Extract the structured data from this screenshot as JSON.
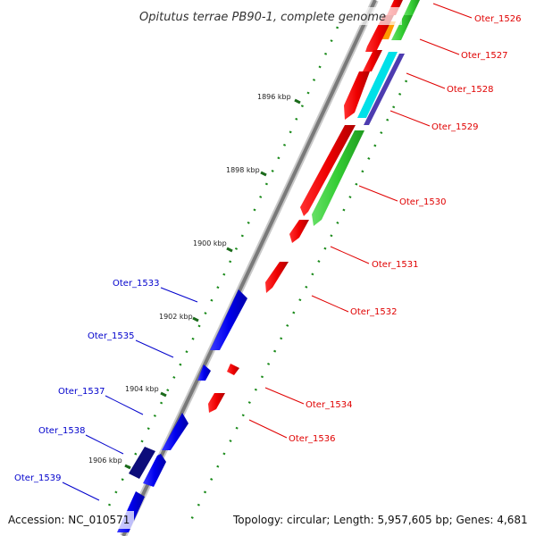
{
  "title": "Opitutus terrae PB90-1, complete genome",
  "footer": {
    "accession": "Accession: NC_010571",
    "summary": "Topology: circular; Length: 5,957,605 bp; Genes: 4,681"
  },
  "colors": {
    "backbone": "#7f7f7f",
    "forward_label": "#e00000",
    "reverse_label": "#0000cc",
    "gc_dots": "#1a8a1a"
  },
  "kbp_ticks": [
    {
      "label": "1896 kbp"
    },
    {
      "label": "1898 kbp"
    },
    {
      "label": "1900 kbp"
    },
    {
      "label": "1902 kbp"
    },
    {
      "label": "1904 kbp"
    },
    {
      "label": "1906 kbp"
    }
  ],
  "forward_labels": [
    {
      "text": "Oter_1526"
    },
    {
      "text": "Oter_1527"
    },
    {
      "text": "Oter_1528"
    },
    {
      "text": "Oter_1529"
    },
    {
      "text": "Oter_1530"
    },
    {
      "text": "Oter_1531"
    },
    {
      "text": "Oter_1532"
    },
    {
      "text": "Oter_1534"
    },
    {
      "text": "Oter_1536"
    }
  ],
  "reverse_labels": [
    {
      "text": "Oter_1533"
    },
    {
      "text": "Oter_1535"
    },
    {
      "text": "Oter_1537"
    },
    {
      "text": "Oter_1538"
    },
    {
      "text": "Oter_1539"
    }
  ]
}
